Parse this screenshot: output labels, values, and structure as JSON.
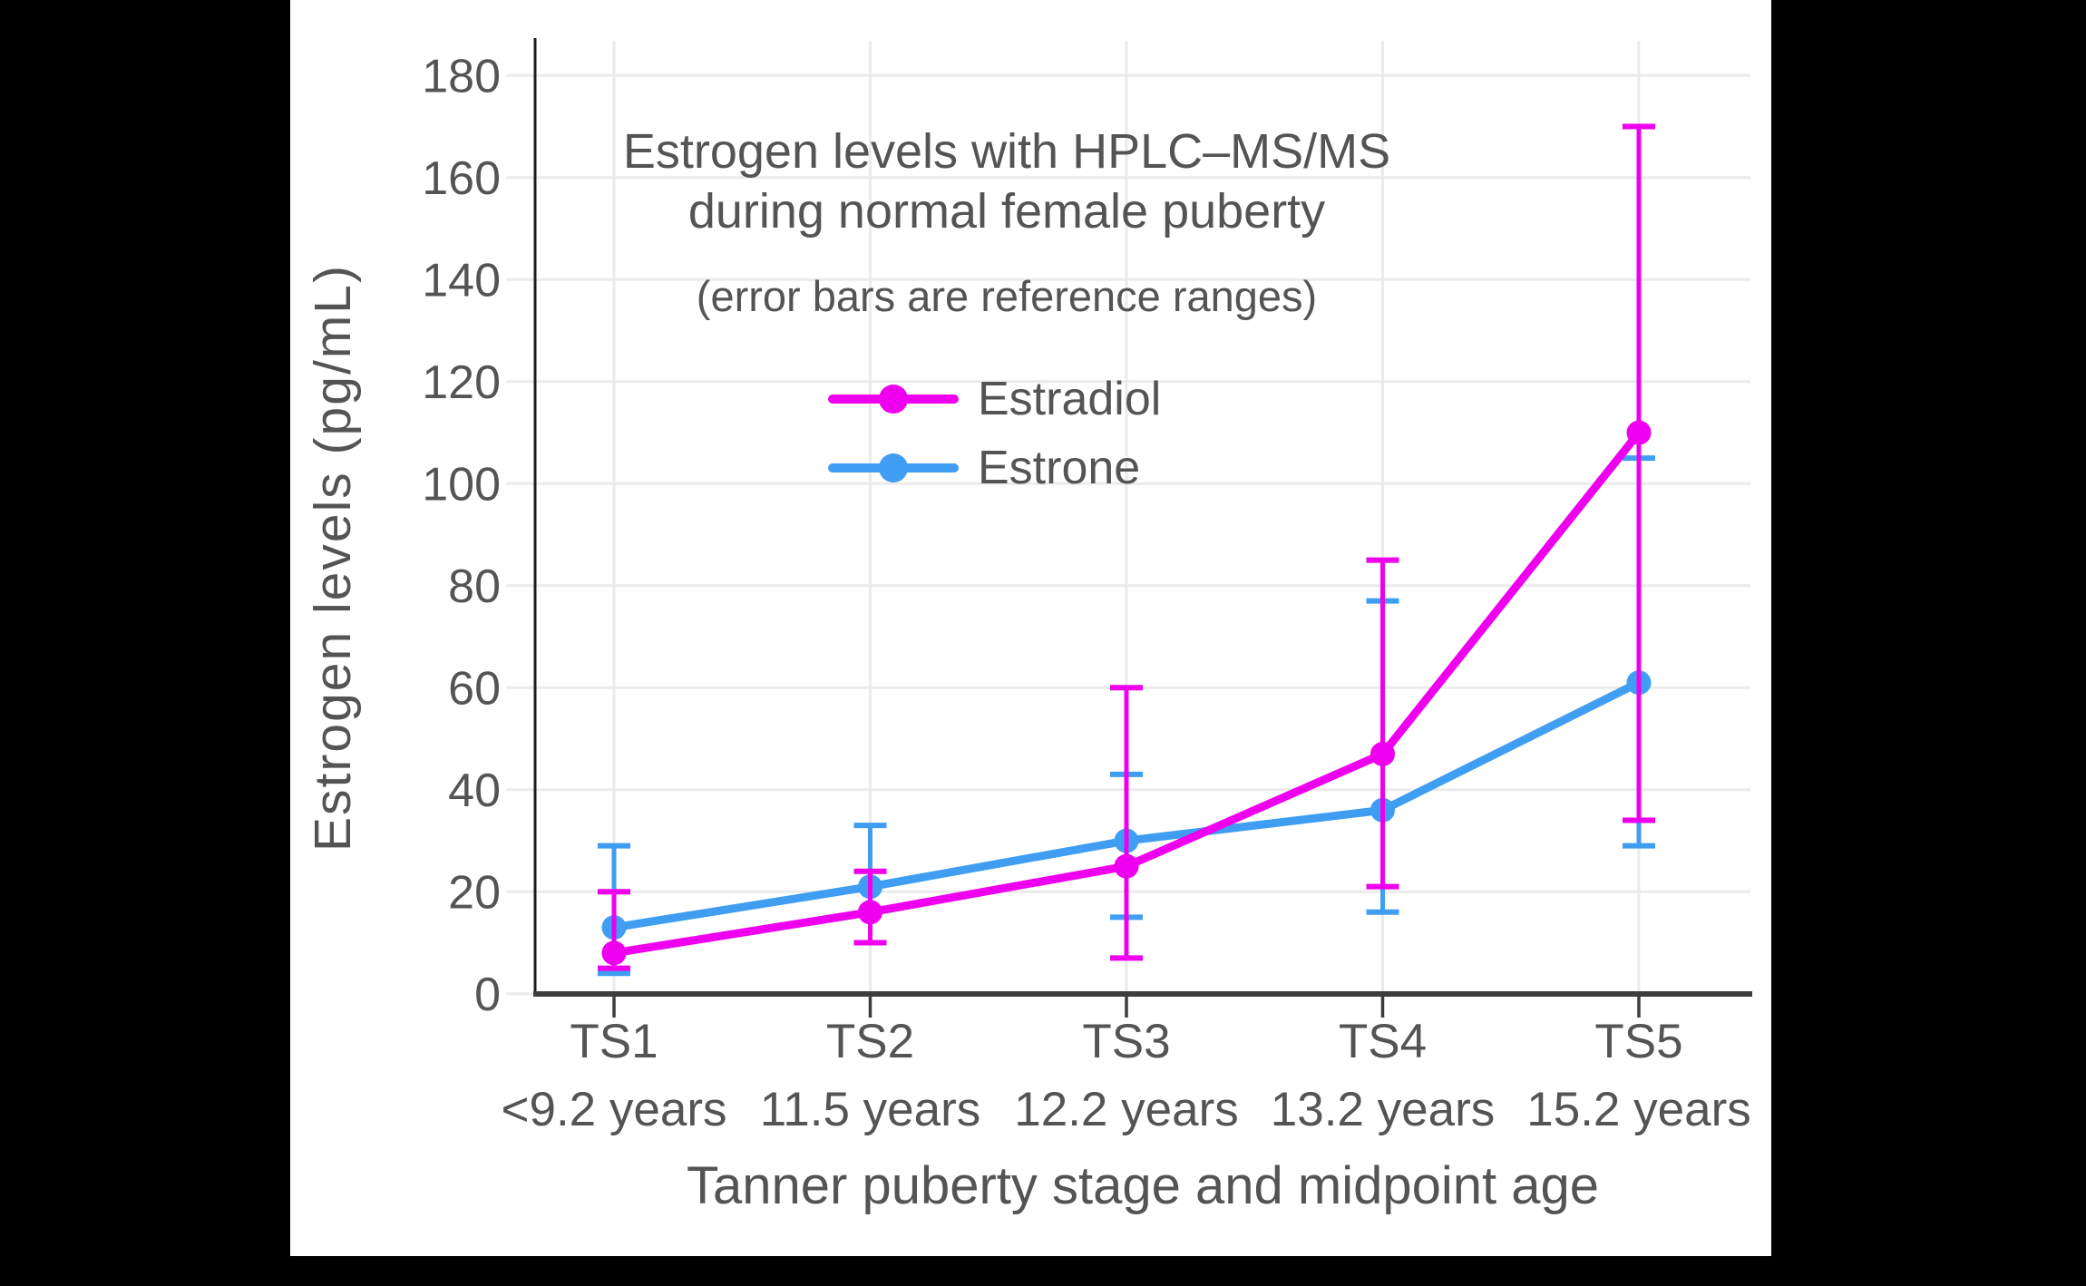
{
  "window": {
    "background_color": "#000000",
    "panel_color": "#ffffff",
    "text_color": "#545454",
    "axis_color": "#3d3d3d",
    "grid_color": "#ebebeb"
  },
  "chart_data": {
    "type": "line",
    "title_lines": [
      "Estrogen levels with HPLC–MS/MS",
      "during normal female puberty"
    ],
    "subtitle": "(error bars are reference ranges)",
    "xlabel": "Tanner puberty stage and midpoint age",
    "ylabel": "Estrogen levels (pg/mL)",
    "categories": [
      "TS1",
      "TS2",
      "TS3",
      "TS4",
      "TS5"
    ],
    "category_ages": [
      "<9.2 years",
      "11.5 years",
      "12.2 years",
      "13.2 years",
      "15.2 years"
    ],
    "y_ticks": [
      0,
      20,
      40,
      60,
      80,
      100,
      120,
      140,
      160,
      180
    ],
    "ylim": [
      0,
      187
    ],
    "grid": true,
    "legend_position": "inside-upper-left",
    "error_bars": "reference ranges",
    "series": [
      {
        "name": "Estradiol",
        "color": "#ee00ee",
        "values": [
          8,
          16,
          25,
          47,
          110
        ],
        "error_low": [
          5,
          10,
          7,
          21,
          34
        ],
        "error_high": [
          20,
          24,
          60,
          85,
          170
        ]
      },
      {
        "name": "Estrone",
        "color": "#3f9ef2",
        "values": [
          13,
          21,
          30,
          36,
          61
        ],
        "error_low": [
          4,
          10,
          15,
          16,
          29
        ],
        "error_high": [
          29,
          33,
          43,
          77,
          105
        ]
      }
    ]
  }
}
